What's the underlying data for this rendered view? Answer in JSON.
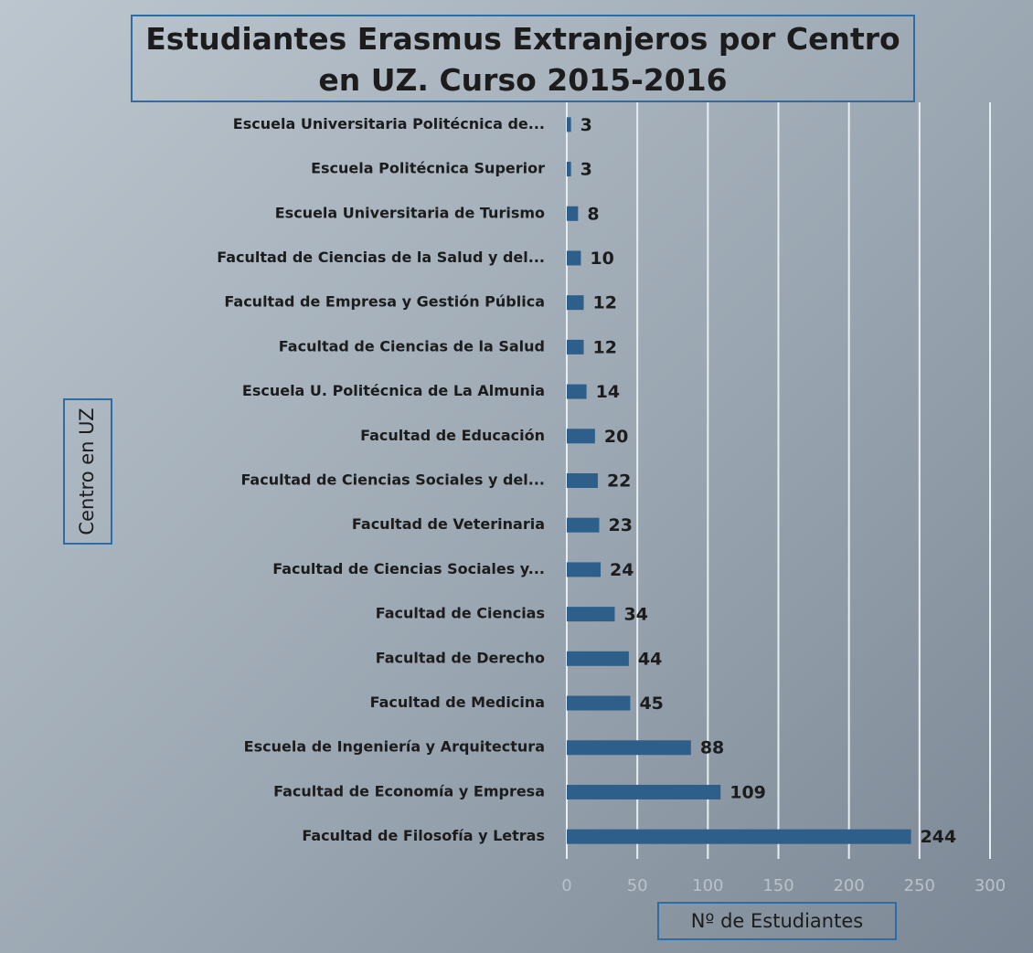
{
  "chart_data": {
    "type": "barh",
    "title": "Estudiantes Erasmus Extranjeros por Centro en UZ. Curso 2015-2016",
    "xlabel": "Nº de Estudiantes",
    "ylabel": "Centro en UZ",
    "categories": [
      "Escuela Universitaria Politécnica de...",
      "Escuela Politécnica Superior",
      "Escuela Universitaria de Turismo",
      "Facultad de Ciencias de la Salud y del...",
      "Facultad de Empresa y Gestión Pública",
      "Facultad de Ciencias de la Salud",
      "Escuela U. Politécnica de La Almunia",
      "Facultad de Educación",
      "Facultad de Ciencias Sociales y del...",
      "Facultad de Veterinaria",
      "Facultad de Ciencias Sociales y...",
      "Facultad de Ciencias",
      "Facultad de Derecho",
      "Facultad de Medicina",
      "Escuela de Ingeniería y Arquitectura",
      "Facultad de Economía y Empresa",
      "Facultad de Filosofía y Letras"
    ],
    "values": [
      3,
      3,
      8,
      10,
      12,
      12,
      14,
      20,
      22,
      23,
      24,
      34,
      44,
      45,
      88,
      109,
      244
    ],
    "color": "#2e5f8a",
    "xlim": [
      0,
      300
    ],
    "xticks": [
      0,
      50,
      100,
      150,
      200,
      250,
      300
    ],
    "grid": true
  }
}
